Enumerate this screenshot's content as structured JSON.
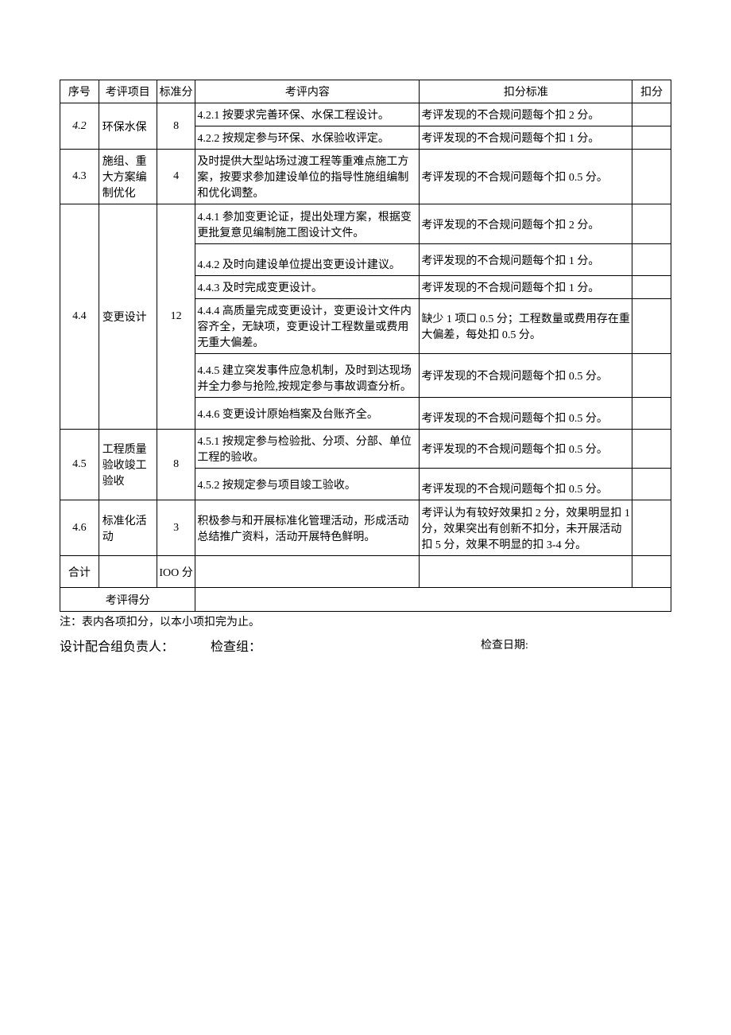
{
  "headers": {
    "index": "序号",
    "item": "考评项目",
    "standardScore": "标准分",
    "content": "考评内容",
    "criteria": "扣分标准",
    "deduction": "扣分"
  },
  "rows": {
    "r42": {
      "index": "4.2",
      "item": "环保水保",
      "std": "8",
      "sub": [
        {
          "content": "4.2.1 按要求完善环保、水保工程设计。",
          "criteria": "考评发现的不合规问题每个扣 2 分。"
        },
        {
          "content": "4.2.2 按规定参与环保、水保验收评定。",
          "criteria": "考评发现的不合规问题每个扣 1 分。"
        }
      ]
    },
    "r43": {
      "index": "4.3",
      "item": "施组、重大方案编制优化",
      "std": "4",
      "sub": [
        {
          "content": "及时提供大型站场过渡工程等重难点施工方案，按要求参加建设单位的指导性施组编制和优化调整。",
          "criteria": "考评发现的不合规问题每个扣 0.5 分。"
        }
      ]
    },
    "r44": {
      "index": "4.4",
      "item": "变更设计",
      "std": "12",
      "sub": [
        {
          "content": "4.4.1 参加变更论证，提出处理方案，根据变更批复意见编制施工图设计文件。",
          "criteria": "考评发现的不合规问题每个扣 2 分。"
        },
        {
          "content": "4.4.2 及时向建设单位提出变更设计建议。",
          "criteria": "考评发现的不合规问题每个扣 1 分。"
        },
        {
          "content": "4.4.3 及时完成变更设计。",
          "criteria": "考评发现的不合规问题每个扣 1 分。"
        },
        {
          "content": "4.4.4 高质量完成变更设计，变更设计文件内容齐全，无缺项，变更设计工程数量或费用无重大偏差。",
          "criteria": "缺少 1 项口 0.5 分；工程数量或费用存在重大偏差，每处扣 0.5 分。"
        },
        {
          "content": "4.4.5 建立突发事件应急机制，及时到达现场并全力参与抢险,按规定参与事故调查分析。",
          "criteria": "考评发现的不合规问题每个扣 0.5 分。"
        },
        {
          "content": "4.4.6 变更设计原始档案及台账齐全。",
          "criteria": "考评发现的不合规问题每个扣 0.5 分。"
        }
      ]
    },
    "r45": {
      "index": "4.5",
      "item": "工程质量验收竣工验收",
      "std": "8",
      "sub": [
        {
          "content": "4.5.1 按规定参与检验批、分项、分部、单位工程的验收。",
          "criteria": "考评发现的不合规问题每个扣 0.5 分。"
        },
        {
          "content": "4.5.2 按规定参与项目竣工验收。",
          "criteria": "考评发现的不合规问题每个扣 0.5 分。"
        }
      ]
    },
    "r46": {
      "index": "4.6",
      "item": "标准化活动",
      "std": "3",
      "sub": [
        {
          "content": "积极参与和开展标准化管理活动，形成活动总结推广资料，活动开展特色鲜明。",
          "criteria": "考评认为有较好效果扣 2 分，效果明显扣 1 分，效果突出有创新不扣分，未开展活动扣 5 分，效果不明显的扣 3-4 分。"
        }
      ]
    },
    "total": {
      "index": "合计",
      "std": "IOO 分"
    },
    "finalScore": {
      "label": "考评得分"
    }
  },
  "footer": {
    "note": "注：表内各项扣分，以本小项扣完为止。",
    "sig1": "设计配合组负责人：",
    "sig2": "检查组：",
    "sig3": "检查日期:"
  }
}
